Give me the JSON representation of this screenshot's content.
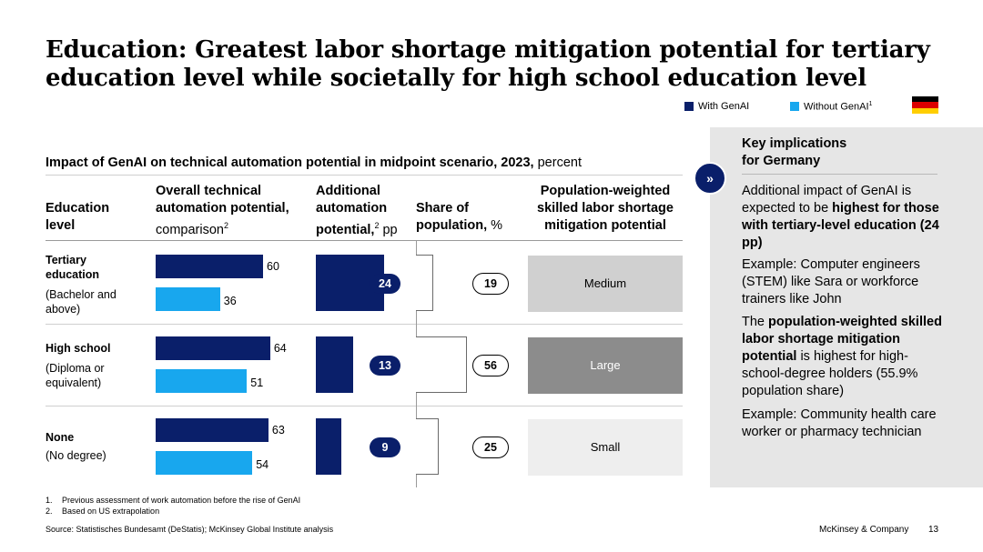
{
  "title": "Education: Greatest labor shortage mitigation potential for tertiary education level while societally for high school education level",
  "legend": {
    "with_label": "With GenAI",
    "without_label": "Without GenAI",
    "without_sup": "1",
    "colors": {
      "with": "#0a1f6a",
      "without": "#18a7ee"
    }
  },
  "subtitle": {
    "bold": "Impact of GenAI on technical automation potential in midpoint scenario, 2023,",
    "normal": " percent"
  },
  "headers": {
    "col1": [
      "Education",
      "level"
    ],
    "col2_bold_1": "Overall technical",
    "col2_bold_2": "automation potential,",
    "col2_normal": "comparison",
    "col2_sup": "2",
    "col3_bold_1": "Additional",
    "col3_bold_2": "automation",
    "col3_bold_3": "potential,",
    "col3_sup": "2",
    "col3_normal": " pp",
    "col4_bold_1": "Share of",
    "col4_bold_2": "population,",
    "col4_normal": " %",
    "col5": [
      "Population-weighted",
      "skilled labor shortage",
      "mitigation potential"
    ]
  },
  "chart_data": {
    "type": "bar",
    "categories": [
      "Tertiary education",
      "High school",
      "None"
    ],
    "series": [
      {
        "name": "With GenAI",
        "values": [
          60,
          64,
          63
        ]
      },
      {
        "name": "Without GenAI",
        "values": [
          36,
          51,
          54
        ]
      }
    ],
    "additional_pp": [
      24,
      13,
      9
    ],
    "share_of_population": [
      19,
      56,
      25
    ],
    "mitigation": [
      "Medium",
      "Large",
      "Small"
    ],
    "mitigation_colors": [
      "#d0d0d0",
      "#8c8c8c",
      "#eeeeee"
    ]
  },
  "rows": [
    {
      "label": "Tertiary",
      "label2": "education",
      "sub1": "(Bachelor and",
      "sub2": "above)"
    },
    {
      "label": "High school",
      "sub1": "(Diploma or",
      "sub2": "equivalent)"
    },
    {
      "label": "None",
      "sub1": "(No degree)"
    }
  ],
  "panel": {
    "heading1": "Key implications",
    "heading2": "for Germany",
    "p1_normal": "Additional impact of GenAI is expected to be ",
    "p1_bold": "highest for those with tertiary-level education (24 pp)",
    "p2": "Example: Computer engineers (STEM) like Sara or workforce trainers like John",
    "p3_normal_a": "The ",
    "p3_bold": "population-weighted skilled labor shortage mitigation potential",
    "p3_normal_b": " is highest for high-school-degree holders (55.9% population share)",
    "p4": "Example: Community health care worker or pharmacy technician"
  },
  "footnotes": {
    "n1": "1.",
    "f1": "Previous assessment of work automation before the rise of GenAI",
    "n2": "2.",
    "f2": "Based on US extrapolation",
    "source": "Source: Statistisches Bundesamt (DeStatis); McKinsey Global Institute analysis",
    "company": "McKinsey & Company",
    "page": "13"
  }
}
